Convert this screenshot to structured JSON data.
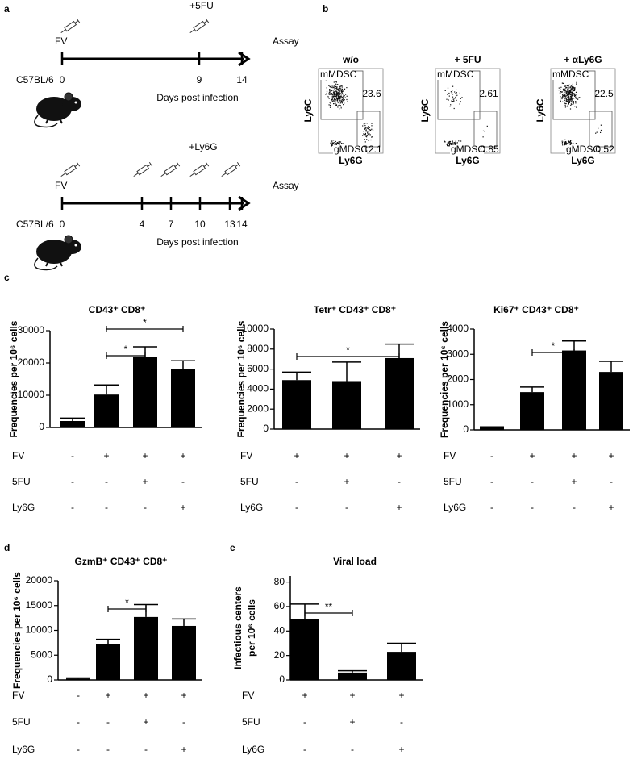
{
  "panel_labels": [
    "a",
    "b",
    "c",
    "d",
    "e"
  ],
  "timelines": [
    {
      "treatment": "+5FU",
      "start": "FV",
      "end": "Assay",
      "strain": "C57BL/6",
      "days": [
        0,
        9,
        14
      ],
      "axis_label": "Days post infection"
    },
    {
      "treatment": "+Ly6G",
      "start": "FV",
      "end": "Assay",
      "strain": "C57BL/6",
      "days": [
        0,
        4,
        7,
        10,
        13,
        14
      ],
      "axis_label": "Days post infection"
    }
  ],
  "flow_plots": {
    "x_label": "Ly6G",
    "y_label": "Ly6C",
    "gate_upper": "mMDSC",
    "gate_lower": "gMDSC",
    "plots": [
      {
        "title": "w/o",
        "upper": 23.6,
        "lower": 12.1
      },
      {
        "title": "+ 5FU",
        "upper": 2.61,
        "lower": 0.85
      },
      {
        "title": "+ αLy6G",
        "upper": 22.5,
        "lower": 0.52
      }
    ]
  },
  "chart_data": [
    {
      "type": "bar",
      "title": "CD43⁺ CD8⁺",
      "y_label": "Frequencies per 10⁶ cells",
      "values": [
        2000,
        10200,
        21800,
        18000
      ],
      "errors": [
        900,
        3000,
        3200,
        2700
      ],
      "color": "#000000",
      "ylim": [
        0,
        30000
      ],
      "yticks": [
        0,
        10000,
        20000,
        30000
      ],
      "treatments": [
        {
          "name": "FV",
          "values": [
            "-",
            "+",
            "+",
            "+"
          ]
        },
        {
          "name": "5FU",
          "values": [
            "-",
            "-",
            "+",
            "-"
          ]
        },
        {
          "name": "Ly6G",
          "values": [
            "-",
            "-",
            "-",
            "+"
          ]
        }
      ],
      "significance": [
        "*",
        "*"
      ]
    },
    {
      "type": "bar",
      "title": "Tetr⁺ CD43⁺ CD8⁺",
      "y_label": "Frequencies per 10⁶ cells",
      "values": [
        4900,
        4800,
        7100
      ],
      "errors": [
        800,
        1900,
        1400
      ],
      "color": "#000000",
      "ylim": [
        0,
        10000
      ],
      "yticks": [
        0,
        2000,
        4000,
        6000,
        8000,
        10000
      ],
      "treatments": [
        {
          "name": "FV",
          "values": [
            "+",
            "+",
            "+"
          ]
        },
        {
          "name": "5FU",
          "values": [
            "-",
            "+",
            "-"
          ]
        },
        {
          "name": "Ly6G",
          "values": [
            "-",
            "-",
            "+"
          ]
        }
      ],
      "significance": [
        "*"
      ]
    },
    {
      "type": "bar",
      "title": "Ki67⁺ CD43⁺ CD8⁺",
      "y_label": "Frequencies per 10⁶ cells",
      "values": [
        100,
        1500,
        3150,
        2300
      ],
      "errors": [
        20,
        200,
        380,
        420
      ],
      "color": "#000000",
      "ylim": [
        0,
        4000
      ],
      "yticks": [
        0,
        1000,
        2000,
        3000,
        4000
      ],
      "treatments": [
        {
          "name": "FV",
          "values": [
            "-",
            "+",
            "+",
            "+"
          ]
        },
        {
          "name": "5FU",
          "values": [
            "-",
            "-",
            "+",
            "-"
          ]
        },
        {
          "name": "Ly6G",
          "values": [
            "-",
            "-",
            "-",
            "+"
          ]
        }
      ],
      "significance": [
        "*"
      ]
    },
    {
      "type": "bar",
      "title": "GzmB⁺ CD43⁺ CD8⁺",
      "y_label": "Frequencies per 10⁶ cells",
      "values": [
        300,
        7300,
        12700,
        10900
      ],
      "errors": [
        100,
        900,
        2500,
        1400
      ],
      "color": "#000000",
      "ylim": [
        0,
        20000
      ],
      "yticks": [
        0,
        5000,
        10000,
        15000,
        20000
      ],
      "treatments": [
        {
          "name": "FV",
          "values": [
            "-",
            "+",
            "+",
            "+"
          ]
        },
        {
          "name": "5FU",
          "values": [
            "-",
            "-",
            "+",
            "-"
          ]
        },
        {
          "name": "Ly6G",
          "values": [
            "-",
            "-",
            "-",
            "+"
          ]
        }
      ],
      "significance": [
        "*"
      ]
    },
    {
      "type": "bar",
      "title": "Viral load",
      "y_label": [
        "Infectious centers",
        "per 10⁶ cells"
      ],
      "values": [
        50,
        6,
        23
      ],
      "errors": [
        12,
        1.5,
        7
      ],
      "color": "#000000",
      "ylim": [
        0,
        85
      ],
      "yticks": [
        0,
        20,
        40,
        60,
        80
      ],
      "treatments": [
        {
          "name": "FV",
          "values": [
            "+",
            "+",
            "+"
          ]
        },
        {
          "name": "5FU",
          "values": [
            "-",
            "+",
            "-"
          ]
        },
        {
          "name": "Ly6G",
          "values": [
            "-",
            "-",
            "+"
          ]
        }
      ],
      "significance": [
        "**"
      ]
    }
  ]
}
